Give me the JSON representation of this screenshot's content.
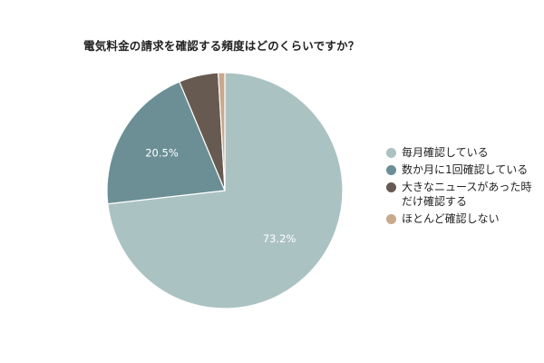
{
  "chart_data": {
    "type": "pie",
    "title": "電気料金の請求を確認する頻度はどのくらいですか？",
    "slices": [
      {
        "label": "毎月確認している",
        "value": 73.2,
        "data_label": "73.2%",
        "color": "#abc2c2"
      },
      {
        "label": "数か月に1回確認している",
        "value": 20.5,
        "data_label": "20.5%",
        "color": "#6b8f94"
      },
      {
        "label": "大きなニュースがあった時\nだけ確認する",
        "value": 5.4,
        "data_label": "",
        "color": "#675a51"
      },
      {
        "label": "ほとんど確認しない",
        "value": 0.9,
        "data_label": "",
        "color": "#c9a88c"
      }
    ],
    "legend_position": "right",
    "data_label_color": "#ffffff",
    "start_angle_deg": 0,
    "direction": "clockwise"
  }
}
